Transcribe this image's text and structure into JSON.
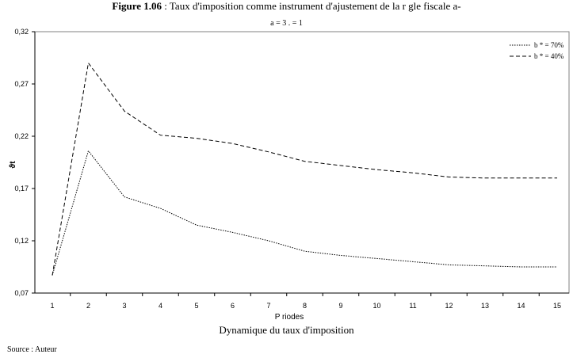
{
  "figure": {
    "title_bold": "Figure 1.06",
    "title_rest": " : Taux d'imposition comme instrument d'ajustement de la r  gle fiscale  a-",
    "subtitle": "a = 3  .     = 1",
    "caption": "Dynamique du taux d'imposition",
    "source": "Source : Auteur"
  },
  "chart_data": {
    "type": "line",
    "xlabel": "P  riodes",
    "ylabel": "ϑt",
    "x": [
      1,
      2,
      3,
      4,
      5,
      6,
      7,
      8,
      9,
      10,
      11,
      12,
      13,
      14,
      15
    ],
    "xlim": [
      1,
      15
    ],
    "ylim": [
      0.07,
      0.32
    ],
    "yticks": [
      "0,07",
      "0,12",
      "0,17",
      "0,22",
      "0,27",
      "0,32"
    ],
    "grid": false,
    "legend_position": "top-right",
    "series": [
      {
        "name": "b * = 70%",
        "style": "dotted",
        "values": [
          0.087,
          0.206,
          0.162,
          0.151,
          0.135,
          0.128,
          0.12,
          0.11,
          0.106,
          0.103,
          0.1,
          0.097,
          0.096,
          0.095,
          0.095
        ]
      },
      {
        "name": "b * = 40%",
        "style": "dashed",
        "values": [
          0.087,
          0.29,
          0.244,
          0.221,
          0.218,
          0.213,
          0.205,
          0.196,
          0.192,
          0.188,
          0.185,
          0.181,
          0.18,
          0.18,
          0.18
        ]
      }
    ],
    "colors": {
      "line": "#000000",
      "axis": "#000000",
      "frame": "#808080"
    }
  }
}
